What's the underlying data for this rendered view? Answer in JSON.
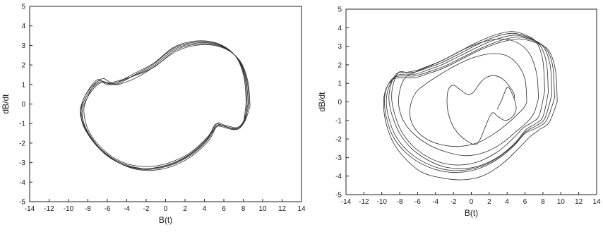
{
  "chart_data": [
    {
      "type": "line",
      "title": "",
      "xlabel": "B(t)",
      "ylabel": "dB/dt",
      "xlim": [
        -14,
        14
      ],
      "ylim": [
        -5,
        5
      ],
      "xticks": [
        "-14",
        "-12",
        "-10",
        "-8",
        "-6",
        "-4",
        "-2",
        "0",
        "2",
        "4",
        "6",
        "8",
        "10",
        "12",
        "14"
      ],
      "yticks": [
        "-5",
        "-4",
        "-3",
        "-2",
        "-1",
        "0",
        "1",
        "2",
        "3",
        "4",
        "5"
      ],
      "grid": false,
      "legend": "none",
      "series": [
        {
          "x": [
            8.5,
            8.3,
            7.6,
            6.4,
            4.8,
            2.9,
            0.9,
            -1.1,
            -3.0,
            -4.7,
            -5.6,
            -6.3,
            -6.8,
            -7.6,
            -8.4,
            -8.7,
            -8.5,
            -8.0,
            -7.0,
            -5.6,
            -3.8,
            -1.8,
            0.3,
            2.4,
            4.2,
            5.3,
            5.9,
            6.5,
            7.3,
            8.0,
            8.5
          ],
          "y": [
            0.0,
            1.2,
            2.2,
            2.8,
            3.1,
            3.1,
            2.8,
            2.0,
            1.5,
            1.15,
            1.05,
            1.1,
            1.2,
            0.9,
            0.3,
            -0.3,
            -0.9,
            -1.5,
            -2.2,
            -2.8,
            -3.2,
            -3.3,
            -3.1,
            -2.6,
            -1.8,
            -1.1,
            -1.1,
            -1.2,
            -1.25,
            -0.9,
            0.0
          ]
        },
        {
          "x": [
            8.3,
            8.1,
            7.4,
            6.2,
            4.6,
            2.7,
            0.8,
            -1.2,
            -3.1,
            -4.6,
            -5.5,
            -6.1,
            -6.6,
            -7.4,
            -8.2,
            -8.6,
            -8.4,
            -7.8,
            -6.7,
            -5.2,
            -3.4,
            -1.5,
            0.6,
            2.6,
            4.4,
            5.2,
            5.7,
            6.4,
            7.3,
            8.0,
            8.3
          ],
          "y": [
            0.1,
            1.3,
            2.3,
            2.9,
            3.2,
            3.2,
            2.9,
            2.1,
            1.6,
            1.2,
            1.0,
            1.0,
            1.1,
            0.8,
            0.2,
            -0.4,
            -1.0,
            -1.6,
            -2.3,
            -2.9,
            -3.3,
            -3.4,
            -3.2,
            -2.7,
            -1.9,
            -1.2,
            -1.15,
            -1.25,
            -1.3,
            -0.95,
            0.1
          ]
        },
        {
          "x": [
            8.7,
            8.5,
            7.8,
            6.6,
            5.0,
            3.1,
            1.1,
            -0.9,
            -2.8,
            -4.5,
            -5.3,
            -6.0,
            -6.5,
            -7.3,
            -8.0,
            -8.4,
            -8.3,
            -7.9,
            -6.9,
            -5.5,
            -3.7,
            -1.6,
            0.4,
            2.5,
            4.3,
            5.3,
            5.9,
            6.6,
            7.5,
            8.2,
            8.7
          ],
          "y": [
            -0.1,
            1.1,
            2.1,
            2.7,
            3.0,
            3.0,
            2.7,
            2.0,
            1.4,
            1.05,
            1.0,
            1.2,
            1.3,
            1.0,
            0.4,
            -0.2,
            -0.8,
            -1.4,
            -2.1,
            -2.7,
            -3.1,
            -3.2,
            -3.0,
            -2.5,
            -1.7,
            -1.0,
            -1.05,
            -1.15,
            -1.2,
            -0.85,
            -0.1
          ]
        },
        {
          "x": [
            8.4,
            8.2,
            7.5,
            6.3,
            4.7,
            2.8,
            0.8,
            -1.2,
            -3.0,
            -4.6,
            -5.4,
            -6.0,
            -6.6,
            -7.5,
            -8.3,
            -8.7,
            -8.6,
            -8.0,
            -6.9,
            -5.4,
            -3.6,
            -1.7,
            0.4,
            2.5,
            4.3,
            5.2,
            5.8,
            6.5,
            7.4,
            8.1,
            8.4
          ],
          "y": [
            0.0,
            1.25,
            2.25,
            2.85,
            3.15,
            3.15,
            2.85,
            2.05,
            1.55,
            1.1,
            1.0,
            1.05,
            1.15,
            0.85,
            0.25,
            -0.35,
            -0.95,
            -1.55,
            -2.25,
            -2.85,
            -3.25,
            -3.35,
            -3.15,
            -2.65,
            -1.85,
            -1.15,
            -1.1,
            -1.2,
            -1.3,
            -0.9,
            0.0
          ]
        },
        {
          "x": [
            8.6,
            8.4,
            7.7,
            6.5,
            4.9,
            3.0,
            1.0,
            -1.0,
            -2.9,
            -4.8,
            -5.7,
            -6.4,
            -7.0,
            -7.7,
            -8.4,
            -8.8,
            -8.6,
            -8.0,
            -6.9,
            -5.4,
            -3.5,
            -1.6,
            0.5,
            2.5,
            4.3,
            5.1,
            5.8,
            6.4,
            7.2,
            8.1,
            8.6
          ],
          "y": [
            0.05,
            1.15,
            2.15,
            2.75,
            3.05,
            3.05,
            2.75,
            1.95,
            1.5,
            1.2,
            1.1,
            1.15,
            1.25,
            0.9,
            0.3,
            -0.3,
            -0.9,
            -1.5,
            -2.2,
            -2.8,
            -3.2,
            -3.3,
            -3.1,
            -2.6,
            -1.8,
            -1.05,
            -1.1,
            -1.2,
            -1.25,
            -0.9,
            0.05
          ]
        }
      ]
    },
    {
      "type": "line",
      "title": "",
      "xlabel": "B(t)",
      "ylabel": "dB/dt",
      "xlim": [
        -14,
        14
      ],
      "ylim": [
        -5,
        5
      ],
      "xticks": [
        "-14",
        "-12",
        "-10",
        "-8",
        "-6",
        "-4",
        "-2",
        "0",
        "2",
        "4",
        "6",
        "8",
        "10",
        "12",
        "14"
      ],
      "yticks": [
        "-5",
        "-4",
        "-3",
        "-2",
        "-1",
        "0",
        "1",
        "2",
        "3",
        "4",
        "5"
      ],
      "grid": false,
      "legend": "none",
      "series": [
        {
          "x": [
            9.0,
            8.8,
            8.0,
            6.6,
            4.9,
            2.9,
            0.9,
            -1.2,
            -3.3,
            -5.0,
            -6.2,
            -7.3,
            -8.4,
            -9.2,
            -9.5,
            -9.2,
            -8.5,
            -7.2,
            -5.5,
            -3.4,
            -1.2,
            0.9,
            3.0,
            4.8,
            6.1,
            7.2,
            8.2,
            9.0
          ],
          "y": [
            0.4,
            2.0,
            3.0,
            3.4,
            3.6,
            3.4,
            3.0,
            2.5,
            2.0,
            1.7,
            1.5,
            1.5,
            1.4,
            0.8,
            0.0,
            -0.9,
            -1.8,
            -2.6,
            -3.2,
            -3.6,
            -3.7,
            -3.5,
            -3.0,
            -2.3,
            -1.6,
            -1.3,
            -0.9,
            0.4
          ]
        },
        {
          "x": [
            9.3,
            9.1,
            8.3,
            6.9,
            5.2,
            3.2,
            1.1,
            -1.0,
            -3.1,
            -4.9,
            -6.3,
            -7.5,
            -8.7,
            -9.5,
            -9.7,
            -9.4,
            -8.7,
            -7.4,
            -5.7,
            -3.6,
            -1.4,
            0.8,
            2.9,
            4.7,
            6.0,
            7.3,
            8.4,
            9.3
          ],
          "y": [
            0.2,
            1.9,
            2.9,
            3.3,
            3.5,
            3.3,
            2.9,
            2.4,
            1.9,
            1.6,
            1.4,
            1.4,
            1.3,
            0.7,
            -0.1,
            -1.0,
            -1.9,
            -2.7,
            -3.3,
            -3.7,
            -3.8,
            -3.6,
            -3.1,
            -2.4,
            -1.7,
            -1.4,
            -1.0,
            0.2
          ]
        },
        {
          "x": [
            8.6,
            8.4,
            7.6,
            6.3,
            4.6,
            2.6,
            0.7,
            -1.3,
            -3.4,
            -5.1,
            -6.4,
            -7.6,
            -8.4,
            -9.0,
            -9.2,
            -8.8,
            -8.0,
            -6.7,
            -5.0,
            -3.0,
            -0.8,
            1.2,
            3.2,
            4.9,
            6.1,
            7.1,
            8.0,
            8.6
          ],
          "y": [
            0.5,
            2.1,
            3.1,
            3.5,
            3.7,
            3.5,
            3.1,
            2.6,
            2.1,
            1.8,
            1.6,
            1.6,
            1.5,
            0.9,
            0.1,
            -0.8,
            -1.7,
            -2.5,
            -3.1,
            -3.5,
            -3.6,
            -3.4,
            -2.9,
            -2.2,
            -1.5,
            -1.2,
            -0.8,
            0.5
          ]
        },
        {
          "x": [
            9.6,
            9.4,
            8.6,
            7.1,
            5.3,
            3.2,
            1.0,
            -1.1,
            -3.2,
            -5.0,
            -6.3,
            -7.6,
            -8.8,
            -9.6,
            -9.8,
            -9.5,
            -8.7,
            -7.3,
            -5.5,
            -3.3,
            -1.0,
            1.2,
            3.3,
            5.1,
            6.5,
            7.6,
            8.7,
            9.6
          ],
          "y": [
            0.0,
            1.7,
            2.8,
            3.2,
            3.4,
            3.2,
            2.8,
            2.3,
            1.8,
            1.5,
            1.3,
            1.3,
            1.2,
            0.6,
            -0.2,
            -1.2,
            -2.2,
            -3.1,
            -3.8,
            -4.1,
            -4.2,
            -4.0,
            -3.4,
            -2.6,
            -1.9,
            -1.5,
            -1.1,
            0.0
          ]
        },
        {
          "x": [
            8.2,
            8.0,
            7.3,
            6.1,
            4.5,
            2.6,
            0.6,
            -1.4,
            -3.4,
            -5.0,
            -6.1,
            -7.2,
            -8.1,
            -8.7,
            -8.9,
            -8.6,
            -7.9,
            -6.7,
            -5.1,
            -3.2,
            -1.1,
            0.9,
            2.9,
            4.6,
            5.8,
            6.8,
            7.6,
            8.2
          ],
          "y": [
            0.6,
            2.2,
            3.2,
            3.6,
            3.8,
            3.6,
            3.2,
            2.7,
            2.2,
            1.9,
            1.7,
            1.6,
            1.6,
            1.0,
            0.2,
            -0.6,
            -1.5,
            -2.3,
            -2.9,
            -3.3,
            -3.4,
            -3.2,
            -2.7,
            -2.0,
            -1.4,
            -1.1,
            -0.7,
            0.6
          ]
        },
        {
          "x": [
            7.5,
            7.3,
            6.5,
            5.1,
            3.2,
            1.1,
            -1.0,
            -3.0,
            -4.8,
            -6.3,
            -7.4,
            -8.0,
            -8.1,
            -7.6,
            -6.5,
            -4.8,
            -2.8,
            -0.6,
            1.6,
            3.5,
            5.0,
            6.2,
            7.0,
            7.5
          ],
          "y": [
            0.2,
            1.5,
            2.6,
            3.2,
            3.4,
            3.2,
            2.8,
            2.3,
            1.9,
            1.6,
            1.3,
            0.6,
            -0.2,
            -1.0,
            -1.7,
            -2.3,
            -2.7,
            -2.9,
            -2.7,
            -2.2,
            -1.6,
            -1.1,
            -0.6,
            0.2
          ]
        },
        {
          "x": [
            6.2,
            6.0,
            5.2,
            3.9,
            2.2,
            0.3,
            -1.6,
            -3.4,
            -5.0,
            -6.2,
            -6.8,
            -6.8,
            -6.2,
            -5.0,
            -3.4,
            -1.4,
            0.7,
            2.6,
            4.2,
            5.3,
            5.9,
            6.2
          ],
          "y": [
            0.0,
            1.2,
            2.0,
            2.5,
            2.6,
            2.4,
            2.0,
            1.5,
            1.0,
            0.5,
            -0.2,
            -0.9,
            -1.5,
            -2.0,
            -2.3,
            -2.4,
            -2.2,
            -1.7,
            -1.1,
            -0.6,
            -0.3,
            0.0
          ]
        },
        {
          "x": [
            4.8,
            4.0,
            2.8,
            1.6,
            0.8,
            0.2,
            -0.4,
            -1.1,
            -2.0,
            -2.6,
            -2.7,
            -2.4,
            -1.8,
            -0.8,
            0.4,
            1.0,
            1.6,
            2.3,
            3.0,
            3.8,
            4.6,
            5.0,
            4.9,
            4.5,
            4.1,
            3.8,
            3.4,
            3.0
          ],
          "y": [
            0.2,
            1.0,
            1.4,
            1.3,
            0.9,
            0.5,
            0.4,
            0.6,
            0.9,
            0.6,
            -0.2,
            -0.9,
            -1.5,
            -2.0,
            -2.3,
            -2.0,
            -1.3,
            -0.6,
            -0.8,
            -1.0,
            -0.8,
            -0.4,
            0.0,
            0.5,
            0.8,
            0.6,
            0.1,
            -0.4
          ]
        }
      ]
    }
  ]
}
